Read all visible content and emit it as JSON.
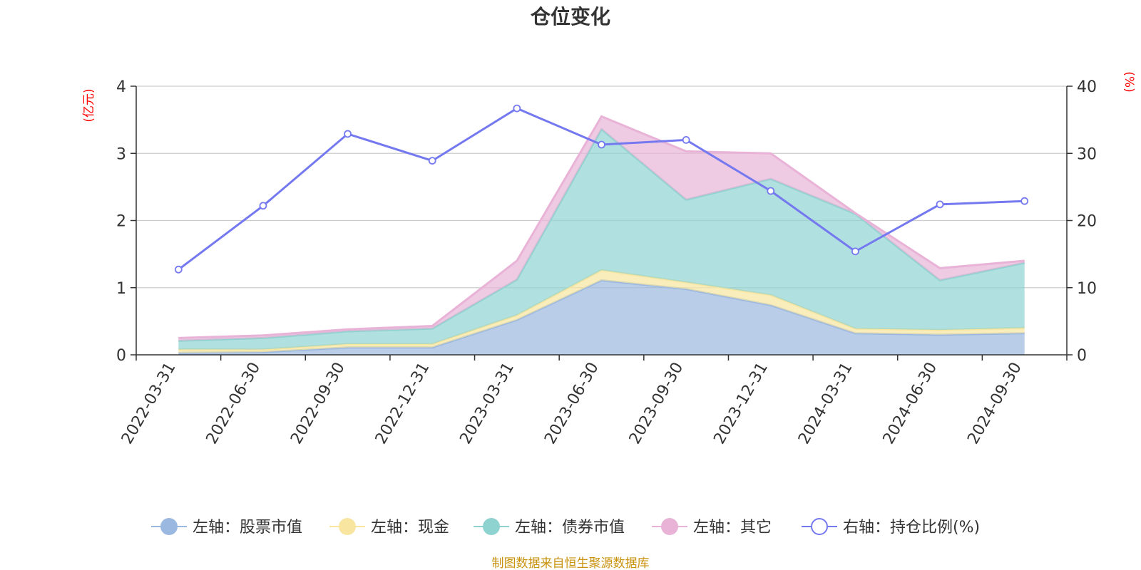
{
  "chart_data": {
    "type": "area",
    "title": "仓位变化",
    "left_unit": "(亿元)",
    "right_unit": "(%)",
    "categories": [
      "2022-03-31",
      "2022-06-30",
      "2022-09-30",
      "2022-12-31",
      "2023-03-31",
      "2023-06-30",
      "2023-09-30",
      "2023-12-31",
      "2024-03-31",
      "2024-06-30",
      "2024-09-30"
    ],
    "left_axis": {
      "min": 0,
      "max": 4,
      "ticks": [
        0,
        1,
        2,
        3,
        4
      ]
    },
    "right_axis": {
      "min": 0,
      "max": 40,
      "ticks": [
        0,
        10,
        20,
        30,
        40
      ]
    },
    "grid": true,
    "stacked": true,
    "series": [
      {
        "name": "左轴：股票市值",
        "axis": "left",
        "kind": "area",
        "color": "#9bb8e0",
        "values": [
          0.03,
          0.04,
          0.11,
          0.11,
          0.52,
          1.11,
          0.98,
          0.74,
          0.32,
          0.3,
          0.32
        ]
      },
      {
        "name": "左轴：现金",
        "axis": "left",
        "kind": "area",
        "color": "#f7e5a0",
        "values": [
          0.05,
          0.04,
          0.05,
          0.05,
          0.07,
          0.15,
          0.1,
          0.15,
          0.07,
          0.07,
          0.08
        ]
      },
      {
        "name": "左轴：债券市值",
        "axis": "left",
        "kind": "area",
        "color": "#8fd3d1",
        "values": [
          0.13,
          0.17,
          0.19,
          0.23,
          0.53,
          2.1,
          1.23,
          1.73,
          1.71,
          0.74,
          0.97
        ]
      },
      {
        "name": "左轴：其它",
        "axis": "left",
        "kind": "area",
        "color": "#e8b3d7",
        "values": [
          0.04,
          0.04,
          0.03,
          0.04,
          0.28,
          0.19,
          0.72,
          0.38,
          0.01,
          0.18,
          0.03
        ]
      },
      {
        "name": "右轴：持仓比例(%)",
        "axis": "right",
        "kind": "line",
        "color": "#7579f0",
        "values": [
          12.7,
          22.2,
          32.9,
          28.9,
          36.7,
          31.3,
          32.0,
          24.4,
          15.4,
          22.4,
          22.9
        ]
      }
    ],
    "legend_position": "bottom",
    "source_note": "制图数据来自恒生聚源数据库"
  }
}
